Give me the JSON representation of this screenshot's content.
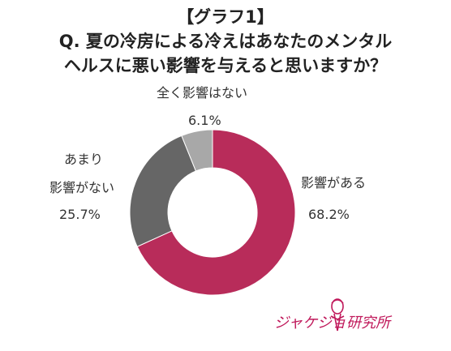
{
  "title": {
    "line1": "【グラフ1】",
    "line2": "Q. 夏の冷房による冷えはあなたのメンタル",
    "line3": "ヘルスに悪い影響を与えると思いますか？"
  },
  "chart_data": {
    "type": "donut",
    "slices": [
      {
        "label": "影響がある",
        "value": 68.2,
        "value_text": "68.2%",
        "color": "#b82c5a"
      },
      {
        "label": "あまり影響がない",
        "value": 25.7,
        "value_text": "25.7%",
        "color": "#666666"
      },
      {
        "label": "全く影響はない",
        "value": 6.1,
        "value_text": "6.1%",
        "color": "#a8a8a8"
      }
    ],
    "label_lines": {
      "slice0_line1": "影響がある",
      "slice1_line1": "あまり",
      "slice1_line2": "影響がない",
      "slice2_line1": "全く影響はない"
    },
    "start_angle": "12 o'clock",
    "direction": "clockwise"
  },
  "logo": {
    "text": "ジャケジョ研究所",
    "color": "#c0195b"
  }
}
